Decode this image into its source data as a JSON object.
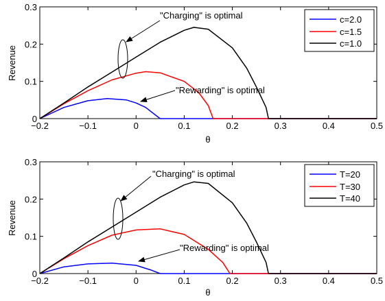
{
  "chart_data": [
    {
      "type": "line",
      "xlabel": "θ",
      "ylabel": "Revenue",
      "xlim": [
        -0.2,
        0.5
      ],
      "ylim": [
        0,
        0.3
      ],
      "xticks": [
        -0.2,
        -0.1,
        0,
        0.1,
        0.2,
        0.3,
        0.4,
        0.5
      ],
      "xtick_labels": [
        "−0.2",
        "−0.1",
        "0",
        "0.1",
        "0.2",
        "0.3",
        "0.4",
        "0.5"
      ],
      "yticks": [
        0,
        0.1,
        0.2,
        0.3
      ],
      "ytick_labels": [
        "0",
        "0.1",
        "0.2",
        "0.3"
      ],
      "grid": false,
      "legend_position": "top-right",
      "series": [
        {
          "name": "c=2.0",
          "color": "#0000ff",
          "x": [
            -0.2,
            -0.15,
            -0.1,
            -0.06,
            -0.02,
            0.0,
            0.02,
            0.04,
            0.05,
            0.5
          ],
          "y": [
            0,
            0.03,
            0.048,
            0.054,
            0.05,
            0.042,
            0.03,
            0.01,
            0,
            0
          ]
        },
        {
          "name": "c=1.5",
          "color": "#ff0000",
          "x": [
            -0.2,
            -0.15,
            -0.1,
            -0.05,
            0.0,
            0.02,
            0.05,
            0.1,
            0.13,
            0.15,
            0.16,
            0.5
          ],
          "y": [
            0,
            0.04,
            0.075,
            0.104,
            0.122,
            0.126,
            0.123,
            0.1,
            0.07,
            0.035,
            0,
            0
          ]
        },
        {
          "name": "c=1.0",
          "color": "#000000",
          "x": [
            -0.2,
            -0.15,
            -0.1,
            -0.05,
            0.0,
            0.05,
            0.1,
            0.12,
            0.15,
            0.2,
            0.23,
            0.25,
            0.27,
            0.275,
            0.5
          ],
          "y": [
            0,
            0.042,
            0.085,
            0.125,
            0.165,
            0.205,
            0.237,
            0.245,
            0.24,
            0.19,
            0.135,
            0.085,
            0.03,
            0,
            0
          ]
        }
      ],
      "annotations": [
        "\"Charging\" is optimal",
        "\"Rewarding\" is optimal"
      ]
    },
    {
      "type": "line",
      "xlabel": "θ",
      "ylabel": "Revenue",
      "xlim": [
        -0.2,
        0.5
      ],
      "ylim": [
        0,
        0.3
      ],
      "xticks": [
        -0.2,
        -0.1,
        0,
        0.1,
        0.2,
        0.3,
        0.4,
        0.5
      ],
      "xtick_labels": [
        "−0.2",
        "−0.1",
        "0",
        "0.1",
        "0.2",
        "0.3",
        "0.4",
        "0.5"
      ],
      "yticks": [
        0,
        0.1,
        0.2,
        0.3
      ],
      "ytick_labels": [
        "0",
        "0.1",
        "0.2",
        "0.3"
      ],
      "grid": false,
      "legend_position": "top-right",
      "series": [
        {
          "name": "T=20",
          "color": "#0000ff",
          "x": [
            -0.2,
            -0.15,
            -0.1,
            -0.05,
            0.0,
            0.03,
            0.05,
            0.5
          ],
          "y": [
            0,
            0.018,
            0.026,
            0.028,
            0.022,
            0.01,
            0,
            0
          ]
        },
        {
          "name": "T=30",
          "color": "#ff0000",
          "x": [
            -0.2,
            -0.15,
            -0.1,
            -0.05,
            0.0,
            0.05,
            0.1,
            0.15,
            0.18,
            0.195,
            0.5
          ],
          "y": [
            0,
            0.04,
            0.075,
            0.103,
            0.117,
            0.12,
            0.105,
            0.065,
            0.03,
            0,
            0
          ]
        },
        {
          "name": "T=40",
          "color": "#000000",
          "x": [
            -0.2,
            -0.15,
            -0.1,
            -0.05,
            0.0,
            0.05,
            0.1,
            0.12,
            0.15,
            0.2,
            0.23,
            0.25,
            0.27,
            0.275,
            0.5
          ],
          "y": [
            0,
            0.042,
            0.085,
            0.125,
            0.165,
            0.205,
            0.238,
            0.246,
            0.242,
            0.19,
            0.135,
            0.085,
            0.03,
            0,
            0
          ]
        }
      ],
      "annotations": [
        "\"Charging\" is optimal",
        "\"Rewarding\" is optimal"
      ]
    }
  ]
}
